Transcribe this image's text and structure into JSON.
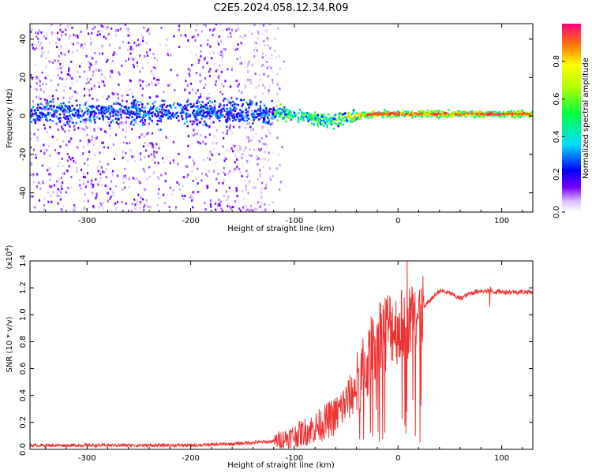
{
  "title": "C2E5.2024.058.12.34.R09",
  "chart_data": [
    {
      "type": "heatmap",
      "xlabel": "Height of straight line (km)",
      "ylabel": "Frequency (Hz)",
      "xlim": [
        -355,
        130
      ],
      "ylim": [
        -50,
        48
      ],
      "x_ticks": [
        -300,
        -200,
        -100,
        0,
        100
      ],
      "y_ticks": [
        -40,
        -20,
        0,
        20,
        40
      ],
      "colorbar": {
        "label": "Normalized spectral amplitude",
        "range": [
          0,
          1
        ],
        "ticks": [
          "0.0",
          "0.2",
          "0.4",
          "0.6",
          "0.8"
        ],
        "tick_values": [
          0,
          0.2,
          0.4,
          0.6,
          0.8
        ]
      },
      "ridge_center_hz": [
        {
          "x": -355,
          "y": 2
        },
        {
          "x": -300,
          "y": 2
        },
        {
          "x": -200,
          "y": 2
        },
        {
          "x": -130,
          "y": 2
        },
        {
          "x": -100,
          "y": 0.5
        },
        {
          "x": -80,
          "y": -1
        },
        {
          "x": -65,
          "y": -3
        },
        {
          "x": -55,
          "y": -1
        },
        {
          "x": -40,
          "y": 0
        },
        {
          "x": -20,
          "y": 1
        },
        {
          "x": 0,
          "y": 1
        },
        {
          "x": 130,
          "y": 1
        }
      ],
      "noise_extent_x": [
        -355,
        -120
      ],
      "noise_extent_y": [
        -50,
        48
      ]
    },
    {
      "type": "line",
      "xlabel": "Height of straight line (km)",
      "ylabel": "SNR (10 * v/v)",
      "multiplier": "(x10^4)",
      "multiplier_base": "(x10",
      "multiplier_exp": "4",
      "multiplier_close": ")",
      "xlim": [
        -355,
        130
      ],
      "ylim": [
        0,
        1.4
      ],
      "x_ticks": [
        -300,
        -200,
        -100,
        0,
        100
      ],
      "y_ticks": [
        "0.0",
        "0.2",
        "0.4",
        "0.6",
        "0.8",
        "1.0",
        "1.2",
        "1.4"
      ],
      "y_tick_values": [
        0,
        0.2,
        0.4,
        0.6,
        0.8,
        1.0,
        1.2,
        1.4
      ],
      "series": [
        {
          "color": "#ee3333",
          "envelope": [
            {
              "x": -355,
              "y": 0.03
            },
            {
              "x": -300,
              "y": 0.03
            },
            {
              "x": -200,
              "y": 0.03
            },
            {
              "x": -160,
              "y": 0.04
            },
            {
              "x": -120,
              "y": 0.06
            },
            {
              "x": -100,
              "y": 0.1
            },
            {
              "x": -80,
              "y": 0.16
            },
            {
              "x": -60,
              "y": 0.25
            },
            {
              "x": -45,
              "y": 0.4
            },
            {
              "x": -30,
              "y": 0.62
            },
            {
              "x": -20,
              "y": 0.85
            },
            {
              "x": -10,
              "y": 0.92
            },
            {
              "x": 0,
              "y": 0.9
            },
            {
              "x": 10,
              "y": 0.95
            },
            {
              "x": 20,
              "y": 1.0
            },
            {
              "x": 30,
              "y": 1.1
            },
            {
              "x": 40,
              "y": 1.18
            },
            {
              "x": 50,
              "y": 1.16
            },
            {
              "x": 60,
              "y": 1.12
            },
            {
              "x": 70,
              "y": 1.16
            },
            {
              "x": 80,
              "y": 1.18
            },
            {
              "x": 100,
              "y": 1.17
            },
            {
              "x": 130,
              "y": 1.17
            }
          ]
        }
      ]
    }
  ]
}
